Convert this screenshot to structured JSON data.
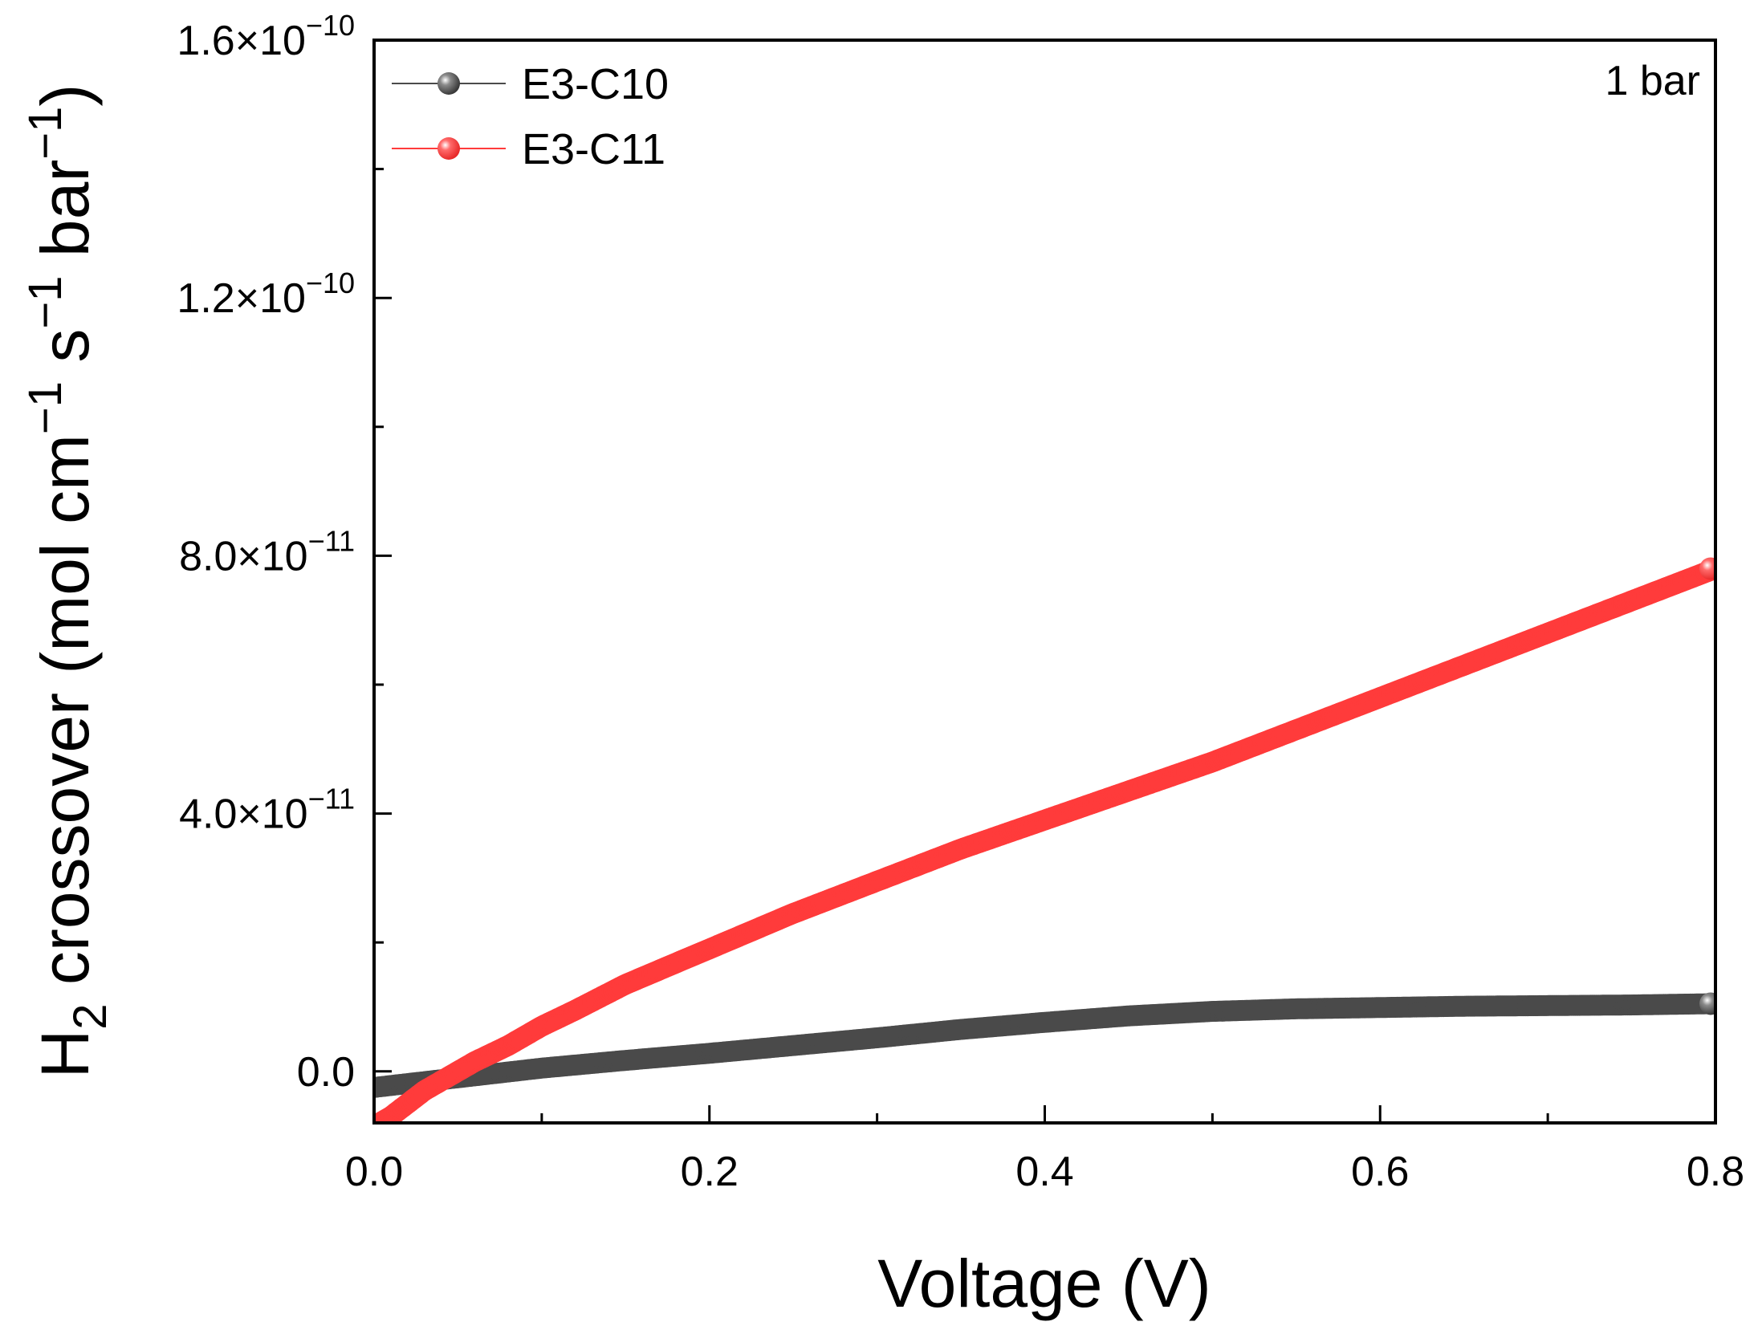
{
  "chart_data": {
    "type": "scatter",
    "title": "",
    "xlabel": "Voltage (V)",
    "ylabel": {
      "prefix": "H",
      "sub": "2",
      "main": " crossover (mol cm",
      "sup1": "−1",
      "mid": " s",
      "sup2": "−1",
      "mid2": " bar",
      "sup3": "−1",
      "end": ")"
    },
    "xlim": [
      0.0,
      0.8
    ],
    "ylim": [
      -8e-12,
      1.6e-10
    ],
    "x_ticks": [
      {
        "value": 0.0,
        "label": "0.0"
      },
      {
        "value": 0.2,
        "label": "0.2"
      },
      {
        "value": 0.4,
        "label": "0.4"
      },
      {
        "value": 0.6,
        "label": "0.6"
      },
      {
        "value": 0.8,
        "label": "0.8"
      }
    ],
    "y_ticks": [
      {
        "value": 0.0,
        "mant": "0.0",
        "exp": ""
      },
      {
        "value": 4e-11,
        "mant": "4.0×10",
        "exp": "−11"
      },
      {
        "value": 8e-11,
        "mant": "8.0×10",
        "exp": "−11"
      },
      {
        "value": 1.2e-10,
        "mant": "1.2×10",
        "exp": "−10"
      },
      {
        "value": 1.6e-10,
        "mant": "1.6×10",
        "exp": "−10"
      }
    ],
    "annotation": "1 bar",
    "legend_position": "top-left",
    "grid": false,
    "series": [
      {
        "name": "E3-C10",
        "color": "#4a4a4a",
        "x": [
          0.0,
          0.05,
          0.1,
          0.15,
          0.2,
          0.25,
          0.3,
          0.35,
          0.4,
          0.45,
          0.5,
          0.55,
          0.6,
          0.65,
          0.7,
          0.75,
          0.8
        ],
        "y_e11": [
          -0.25,
          -0.1,
          0.05,
          0.17,
          0.28,
          0.4,
          0.52,
          0.65,
          0.76,
          0.86,
          0.93,
          0.97,
          0.99,
          1.01,
          1.02,
          1.03,
          1.05
        ]
      },
      {
        "name": "E3-C11",
        "color": "#ff3b3b",
        "x": [
          0.0,
          0.01,
          0.02,
          0.03,
          0.04,
          0.05,
          0.06,
          0.08,
          0.1,
          0.12,
          0.15,
          0.2,
          0.25,
          0.3,
          0.35,
          0.4,
          0.45,
          0.5,
          0.55,
          0.6,
          0.65,
          0.7,
          0.75,
          0.8
        ],
        "y_e11": [
          -0.85,
          -0.7,
          -0.5,
          -0.3,
          -0.15,
          0.0,
          0.15,
          0.4,
          0.7,
          0.95,
          1.35,
          1.9,
          2.45,
          2.95,
          3.45,
          3.9,
          4.35,
          4.8,
          5.3,
          5.8,
          6.3,
          6.8,
          7.3,
          7.8
        ]
      }
    ]
  }
}
